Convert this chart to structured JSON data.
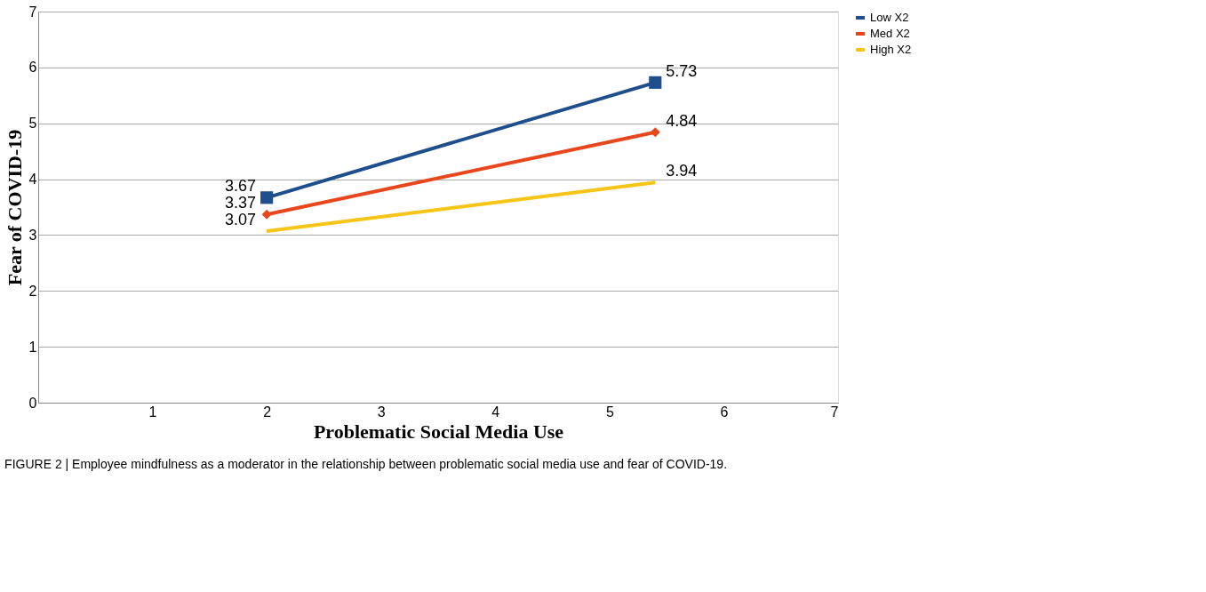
{
  "chart_data": {
    "type": "line",
    "xlabel": "Problematic  Social Media Use",
    "ylabel": "Fear of COVID-19",
    "annotations": [
      "FIGURE 2 | Employee mindfulness as a moderator in the relationship between problematic social media use and fear of COVID-19."
    ],
    "x": [
      2,
      5.4
    ],
    "series": [
      {
        "name": "Low X2",
        "color": "#1f4e8c",
        "values": [
          3.67,
          5.73
        ],
        "marker": "square"
      },
      {
        "name": "Med X2",
        "color": "#e8461c",
        "values": [
          3.37,
          4.84
        ],
        "marker": "diamond"
      },
      {
        "name": "High X2",
        "color": "#f5c518",
        "values": [
          3.07,
          3.94
        ],
        "marker": "none"
      }
    ],
    "xlim": [
      0,
      7
    ],
    "xticks": [
      1,
      2,
      3,
      4,
      5,
      6,
      7
    ],
    "ylim": [
      0,
      7
    ],
    "yticks": [
      0,
      1,
      2,
      3,
      4,
      5,
      6,
      7
    ],
    "grid": "y",
    "legend": "right",
    "data_labels": true
  }
}
